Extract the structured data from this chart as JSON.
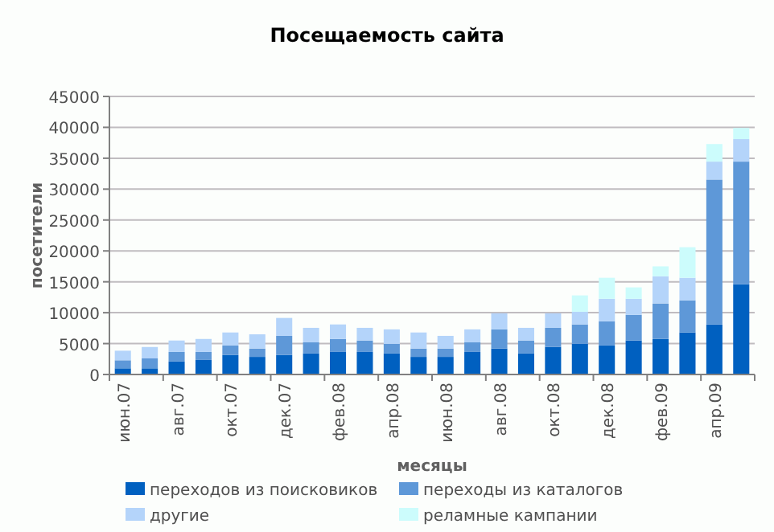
{
  "chart_data": {
    "type": "bar",
    "title": "Посещаемость сайта",
    "xlabel": "месяцы",
    "ylabel": "посетители",
    "stacked": true,
    "categories": [
      "июн.07",
      null,
      "авг.07",
      null,
      "окт.07",
      null,
      "дек.07",
      null,
      "фев.08",
      null,
      "апр.08",
      null,
      "июн.08",
      null,
      "авг.08",
      null,
      "окт.08",
      null,
      "дек.08",
      null,
      "фев.09",
      null,
      "апр.09",
      null
    ],
    "series": [
      {
        "name": "переходов из поисковиков",
        "color": "#0060c0",
        "values": [
          1000,
          1000,
          2100,
          2350,
          3150,
          2850,
          3150,
          3400,
          3650,
          3650,
          3400,
          2850,
          2850,
          3650,
          4200,
          3400,
          4450,
          4950,
          4700,
          5500,
          5750,
          6800,
          8100,
          14600
        ]
      },
      {
        "name": "переходы из каталогов",
        "color": "#5e98d8",
        "values": [
          1300,
          1600,
          1550,
          1300,
          1550,
          1350,
          3100,
          1800,
          2100,
          1850,
          1550,
          1350,
          1350,
          1550,
          3100,
          2100,
          3100,
          3150,
          3900,
          4150,
          5750,
          5200,
          23450,
          19850
        ]
      },
      {
        "name": "другие",
        "color": "#b4d4fa",
        "values": [
          1550,
          1850,
          1850,
          2100,
          2100,
          2300,
          2900,
          2350,
          2350,
          2050,
          2350,
          2600,
          2050,
          2100,
          2600,
          2050,
          2350,
          2050,
          3650,
          2600,
          4400,
          3650,
          2900,
          3650
        ]
      },
      {
        "name": "реламные кампании",
        "color": "#ccfcfc",
        "values": [
          0,
          0,
          0,
          0,
          0,
          0,
          0,
          0,
          0,
          0,
          0,
          0,
          0,
          0,
          0,
          0,
          0,
          2650,
          3400,
          1850,
          1600,
          4950,
          2850,
          1800
        ]
      }
    ],
    "ylim": [
      0,
      45000
    ],
    "yticks": [
      0,
      5000,
      10000,
      15000,
      20000,
      25000,
      30000,
      35000,
      40000,
      45000
    ],
    "grid": "y",
    "legend": "bottom"
  }
}
